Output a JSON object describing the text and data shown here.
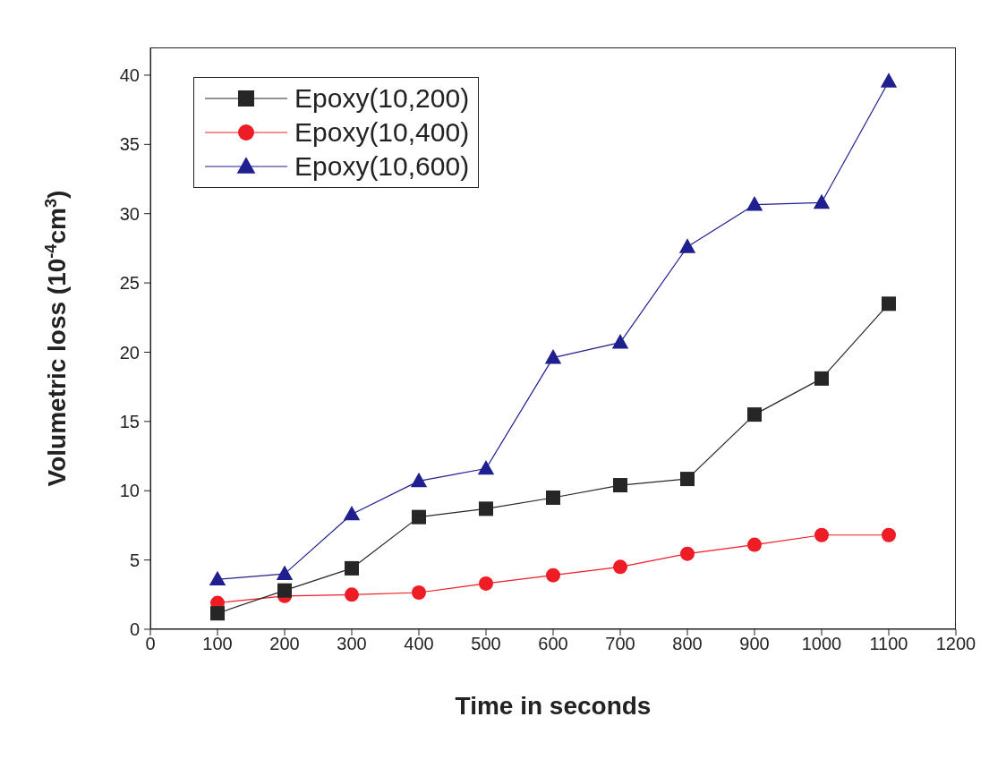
{
  "chart_data": {
    "type": "line",
    "xlabel": "Time in seconds",
    "ylabel": "Volumetric loss (10$^{-4}$cm$^{3}$)",
    "x": [
      100,
      200,
      300,
      400,
      500,
      600,
      700,
      800,
      900,
      1000,
      1100
    ],
    "series": [
      {
        "name": "Epoxy(10,200)",
        "color": "#262626",
        "marker": "square",
        "values": [
          1.15,
          2.8,
          4.4,
          8.1,
          8.7,
          9.5,
          10.4,
          10.85,
          15.5,
          18.1,
          23.5
        ]
      },
      {
        "name": "Epoxy(10,400)",
        "color": "#ee1c24",
        "marker": "circle",
        "values": [
          1.9,
          2.4,
          2.5,
          2.65,
          3.3,
          3.9,
          4.5,
          5.45,
          6.1,
          6.8,
          6.8
        ]
      },
      {
        "name": "Epoxy(10,600)",
        "color": "#1f1f8f",
        "marker": "triangle",
        "values": [
          3.6,
          4.0,
          8.3,
          10.7,
          11.6,
          19.6,
          20.7,
          27.6,
          30.65,
          30.8,
          39.55
        ]
      }
    ],
    "xlim": [
      0,
      1200
    ],
    "xticks": [
      0,
      100,
      200,
      300,
      400,
      500,
      600,
      700,
      800,
      900,
      1000,
      1100,
      1200
    ],
    "ylim": [
      0,
      42
    ],
    "yticks": [
      0,
      5,
      10,
      15,
      20,
      25,
      30,
      35,
      40
    ],
    "grid": false,
    "legend": "top left",
    "line_style": "solid"
  }
}
